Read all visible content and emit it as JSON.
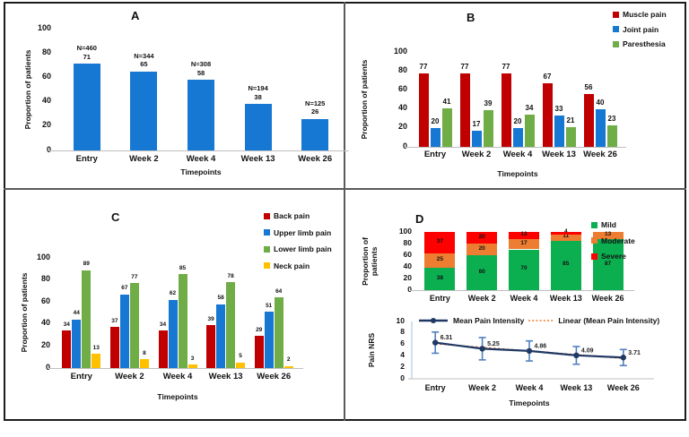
{
  "figure": {
    "background": "#ffffff",
    "border_color": "#1c1c1c",
    "divider_color": "#5a5a5a",
    "axis_line_color": "#BFBFBF"
  },
  "chart_data": [
    {
      "panel": "A",
      "panel_label": "A",
      "type": "bar",
      "ylabel": "Proportion of patients",
      "xlabel": "Timepoints",
      "categories": [
        "Entry",
        "Week 2",
        "Week 4",
        "Week 13",
        "Week 26"
      ],
      "ylim": [
        0,
        100
      ],
      "yticks": [
        0,
        20,
        40,
        60,
        80,
        100
      ],
      "series": [
        {
          "name": "Proportion of patients",
          "color": "#1678D2",
          "values": [
            71,
            65,
            58,
            38,
            26
          ]
        }
      ],
      "bar_top_labels": [
        [
          "N=460",
          "71"
        ],
        [
          "N=344",
          "65"
        ],
        [
          "N=308",
          "58"
        ],
        [
          "N=194",
          "38"
        ],
        [
          "N=125",
          "26"
        ]
      ]
    },
    {
      "panel": "B",
      "panel_label": "B",
      "type": "bar",
      "ylabel": "Proportion of patients",
      "xlabel": "Timepoints",
      "categories": [
        "Entry",
        "Week 2",
        "Week 4",
        "Week 13",
        "Week 26"
      ],
      "ylim": [
        0,
        100
      ],
      "yticks": [
        0,
        20,
        40,
        60,
        80,
        100
      ],
      "legend_position": "top-right",
      "series": [
        {
          "name": "Muscle pain",
          "color": "#C00000",
          "values": [
            77,
            77,
            77,
            67,
            56
          ]
        },
        {
          "name": "Joint pain",
          "color": "#1678D2",
          "values": [
            20,
            17,
            20,
            33,
            40
          ]
        },
        {
          "name": "Paresthesia",
          "color": "#70AD47",
          "values": [
            41,
            39,
            34,
            21,
            23
          ]
        }
      ]
    },
    {
      "panel": "C",
      "panel_label": "C",
      "type": "bar",
      "ylabel": "Proportion of patients",
      "xlabel": "Timepoints",
      "categories": [
        "Entry",
        "Week 2",
        "Week 4",
        "Week 13",
        "Week 26"
      ],
      "ylim": [
        0,
        100
      ],
      "yticks": [
        0,
        20,
        40,
        60,
        80,
        100
      ],
      "legend_position": "top-right",
      "series": [
        {
          "name": "Back pain",
          "color": "#C00000",
          "values": [
            34,
            37,
            34,
            39,
            29
          ]
        },
        {
          "name": "Upper limb pain",
          "color": "#1678D2",
          "values": [
            44,
            67,
            62,
            58,
            51
          ]
        },
        {
          "name": "Lower limb pain",
          "color": "#70AD47",
          "values": [
            89,
            77,
            85,
            78,
            64
          ]
        },
        {
          "name": "Neck pain",
          "color": "#FFC000",
          "values": [
            13,
            8,
            3,
            5,
            2
          ]
        }
      ]
    },
    {
      "panel": "D",
      "panel_label": "D",
      "type": "stacked-bar",
      "ylabel": "Proportion of patients",
      "categories": [
        "Entry",
        "Week 2",
        "Week 4",
        "Week 13",
        "Week 26"
      ],
      "ylim": [
        0,
        100
      ],
      "yticks": [
        0,
        20,
        40,
        60,
        80,
        100
      ],
      "legend_position": "top-right",
      "series": [
        {
          "name": "Mild",
          "color": "#0BAF50",
          "values": [
            38,
            60,
            70,
            85,
            87
          ]
        },
        {
          "name": "Moderate",
          "color": "#ED7D31",
          "values": [
            25,
            20,
            17,
            11,
            13
          ]
        },
        {
          "name": "Severe",
          "color": "#FE0000",
          "values": [
            37,
            20,
            13,
            4,
            0
          ]
        }
      ]
    },
    {
      "panel": "D",
      "panel_label": "D",
      "type": "line",
      "ylabel": "Pain NRS",
      "xlabel": "Timepoints",
      "categories": [
        "Entry",
        "Week 2",
        "Week 4",
        "Week 13",
        "Week 26"
      ],
      "ylim": [
        0,
        10
      ],
      "yticks": [
        0,
        2,
        4,
        6,
        8,
        10
      ],
      "legend_position": "top",
      "series": [
        {
          "name": "Mean Pain Intensity",
          "color": "#1F3864",
          "error_color": "#4F81BD",
          "values": [
            6.31,
            5.25,
            4.86,
            4.09,
            3.71
          ],
          "labels": [
            "6.31",
            "5.25",
            "4.86",
            "4.09",
            "3.71"
          ],
          "errors": [
            1.85,
            1.95,
            1.75,
            1.55,
            1.4
          ]
        }
      ],
      "trendline": {
        "label": "Linear (Mean Pain Intensity)",
        "color": "#ED7D31",
        "style": "dotted"
      }
    }
  ]
}
